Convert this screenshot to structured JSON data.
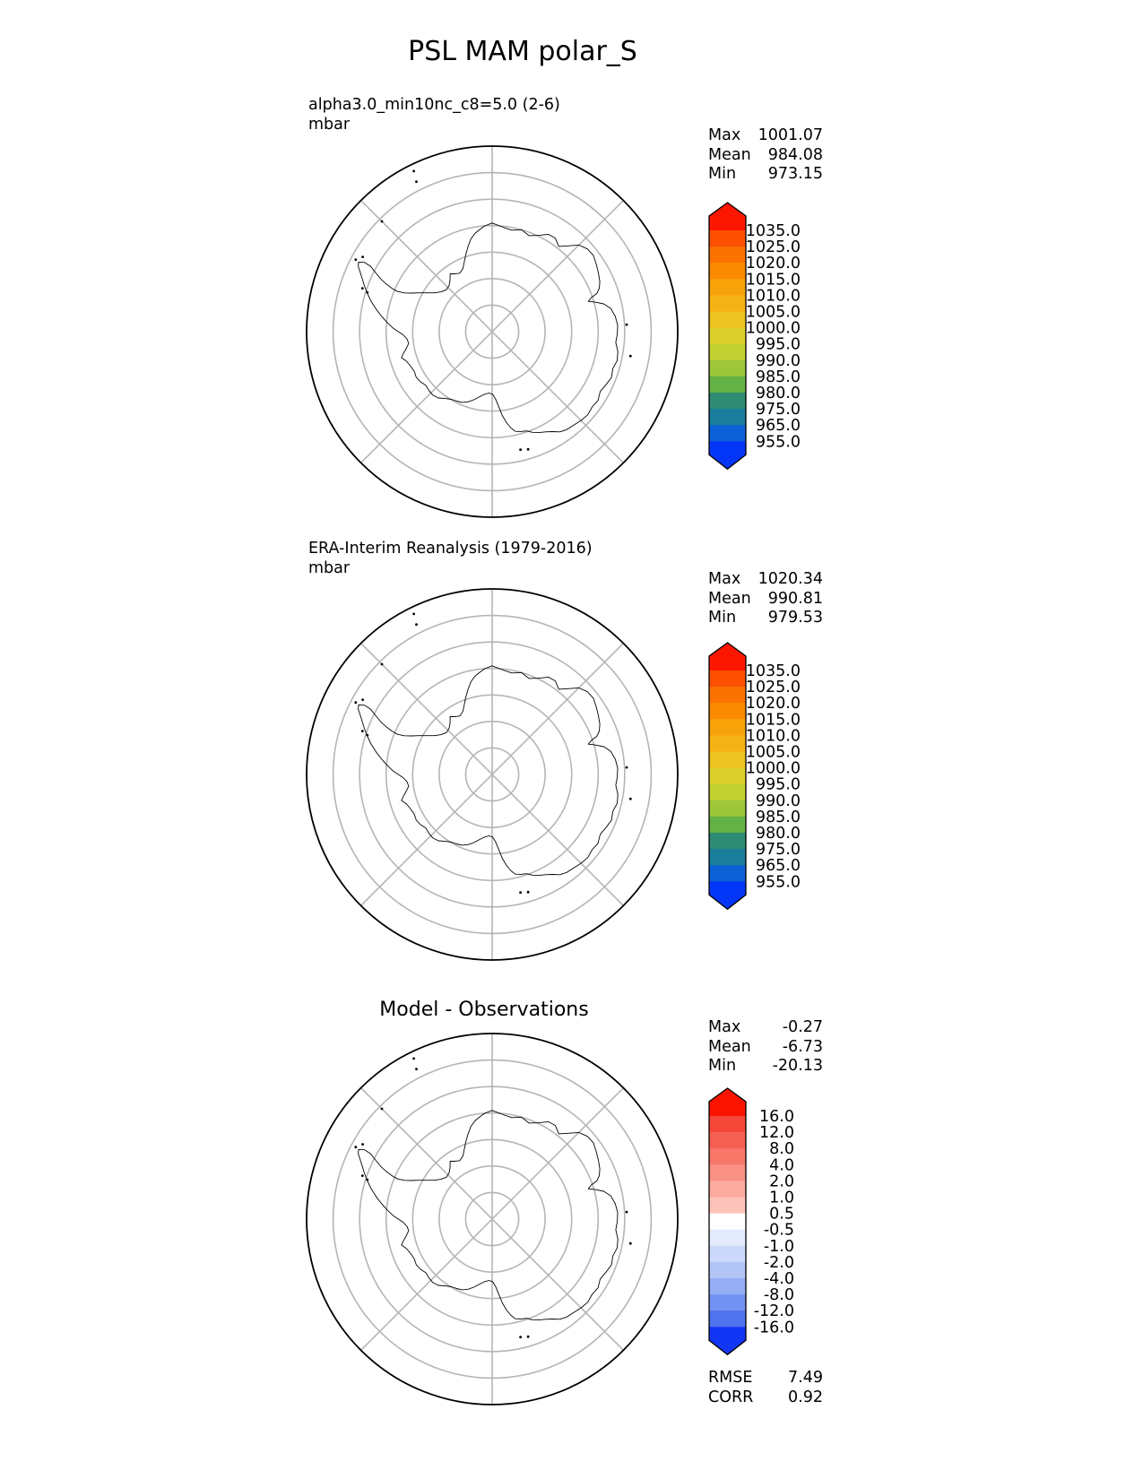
{
  "title": "PSL MAM polar_S",
  "map_geometry": {
    "projection": "south_polar_stereographic",
    "boundary_lat": -55,
    "grid_lat_circles": [
      -85,
      -80,
      -75,
      -70,
      -65,
      -60
    ],
    "grid_meridian_lines_deg": [
      0,
      45,
      135
    ],
    "grid_color": "#b5b5b5",
    "boundary_color": "#000000",
    "coast_color": "#000000",
    "coastline_lonlat": [
      [
        0,
        -69.5
      ],
      [
        6,
        -70.2
      ],
      [
        11,
        -70.5
      ],
      [
        16,
        -70.0
      ],
      [
        21,
        -70.6
      ],
      [
        26,
        -69.8
      ],
      [
        30,
        -68.8
      ],
      [
        34,
        -68.7
      ],
      [
        38,
        -69.6
      ],
      [
        42,
        -68.2
      ],
      [
        45,
        -66.9
      ],
      [
        49,
        -66.2
      ],
      [
        53,
        -66.1
      ],
      [
        57,
        -66.6
      ],
      [
        61,
        -67.1
      ],
      [
        65,
        -67.6
      ],
      [
        68,
        -68.2
      ],
      [
        70,
        -69.0
      ],
      [
        71,
        -70.2
      ],
      [
        72.5,
        -71.0
      ],
      [
        74,
        -69.8
      ],
      [
        76,
        -68.3
      ],
      [
        79,
        -67.2
      ],
      [
        83,
        -66.6
      ],
      [
        87,
        -66.3
      ],
      [
        91,
        -66.4
      ],
      [
        95,
        -66.6
      ],
      [
        99,
        -66.0
      ],
      [
        103,
        -65.8
      ],
      [
        107,
        -66.2
      ],
      [
        111,
        -65.9
      ],
      [
        115,
        -66.3
      ],
      [
        119,
        -66.7
      ],
      [
        123,
        -66.2
      ],
      [
        127,
        -66.4
      ],
      [
        131,
        -66.1
      ],
      [
        135,
        -66.3
      ],
      [
        139,
        -66.6
      ],
      [
        143,
        -66.8
      ],
      [
        146,
        -67.2
      ],
      [
        149,
        -68.0
      ],
      [
        152,
        -68.6
      ],
      [
        155,
        -69.0
      ],
      [
        158,
        -69.5
      ],
      [
        161,
        -70.2
      ],
      [
        164,
        -70.4
      ],
      [
        167,
        -70.7
      ],
      [
        169,
        -71.5
      ],
      [
        171,
        -72.6
      ],
      [
        173,
        -74.0
      ],
      [
        175,
        -75.8
      ],
      [
        177,
        -77.2
      ],
      [
        179.5,
        -78.2
      ],
      [
        183,
        -78.4
      ],
      [
        187,
        -78.1
      ],
      [
        191,
        -77.5
      ],
      [
        195,
        -76.7
      ],
      [
        199,
        -76.0
      ],
      [
        203,
        -75.5
      ],
      [
        207,
        -75.3
      ],
      [
        211,
        -75.1
      ],
      [
        215,
        -74.6
      ],
      [
        219,
        -73.9
      ],
      [
        223,
        -73.6
      ],
      [
        227,
        -73.7
      ],
      [
        231,
        -73.9
      ],
      [
        235,
        -73.5
      ],
      [
        239,
        -73.3
      ],
      [
        243,
        -73.5
      ],
      [
        247,
        -73.3
      ],
      [
        251,
        -72.9
      ],
      [
        254,
        -72.2
      ],
      [
        256,
        -72.7
      ],
      [
        259,
        -73.5
      ],
      [
        262,
        -74.1
      ],
      [
        265,
        -73.9
      ],
      [
        268,
        -73.2
      ],
      [
        270,
        -72.3
      ],
      [
        272,
        -71.3
      ],
      [
        275,
        -70.1
      ],
      [
        278,
        -68.9
      ],
      [
        281,
        -67.7
      ],
      [
        284,
        -66.5
      ],
      [
        287,
        -65.4
      ],
      [
        290,
        -64.3
      ],
      [
        292.5,
        -63.4
      ],
      [
        294.5,
        -62.6
      ],
      [
        296,
        -61.9
      ],
      [
        297.5,
        -61.6
      ],
      [
        298.5,
        -62.6
      ],
      [
        298.2,
        -64.0
      ],
      [
        296.8,
        -65.4
      ],
      [
        295.3,
        -66.8
      ],
      [
        294.2,
        -68.1
      ],
      [
        293.4,
        -69.4
      ],
      [
        293,
        -70.6
      ],
      [
        293.8,
        -71.9
      ],
      [
        295.5,
        -73.1
      ],
      [
        298,
        -74.4
      ],
      [
        300.8,
        -75.7
      ],
      [
        304,
        -76.9
      ],
      [
        308,
        -77.8
      ],
      [
        312.5,
        -78.3
      ],
      [
        317,
        -78.1
      ],
      [
        321,
        -77.4
      ],
      [
        324,
        -76.5
      ],
      [
        327,
        -77.0
      ],
      [
        331,
        -77.4
      ],
      [
        335,
        -76.9
      ],
      [
        338,
        -75.9
      ],
      [
        341,
        -74.7
      ],
      [
        344,
        -73.4
      ],
      [
        347,
        -72.1
      ],
      [
        350,
        -71.2
      ],
      [
        353,
        -70.6
      ],
      [
        356,
        -70.0
      ],
      [
        360,
        -69.5
      ]
    ],
    "islands_lonlat": [
      [
        334,
        -56.3
      ],
      [
        333.2,
        -58.3
      ],
      [
        315,
        -60.6
      ],
      [
        297.8,
        -60.9
      ],
      [
        300,
        -61.8
      ],
      [
        288.5,
        -64.2
      ],
      [
        287.5,
        -65.3
      ],
      [
        163,
        -66.8
      ],
      [
        166.5,
        -67.1
      ],
      [
        87,
        -64.6
      ],
      [
        100,
        -63.5
      ]
    ]
  },
  "chart_data": [
    {
      "type": "heatmap",
      "projection": "south_polar_stereographic",
      "title": "alpha3.0_min10nc_c8=5.0 (2-6)",
      "units": "mbar",
      "stats": [
        {
          "label": "Max",
          "value": "1001.07"
        },
        {
          "label": "Mean",
          "value": "984.08"
        },
        {
          "label": "Min",
          "value": "973.15"
        }
      ],
      "colorbar": {
        "orientation": "vertical",
        "extend": "both",
        "levels": [
          "1035.0",
          "1025.0",
          "1020.0",
          "1015.0",
          "1010.0",
          "1005.0",
          "1000.0",
          "995.0",
          "990.0",
          "985.0",
          "980.0",
          "975.0",
          "965.0",
          "955.0"
        ],
        "band_colors": [
          "#fc5000",
          "#fc7200",
          "#fb8b00",
          "#f9a30b",
          "#f5b215",
          "#edc321",
          "#ddcf2b",
          "#c3d032",
          "#9dc63a",
          "#63b246",
          "#2e8b74",
          "#1a7d9b",
          "#0a60d4"
        ],
        "above_color": "#fb1600",
        "below_color": "#0336f7"
      }
    },
    {
      "type": "heatmap",
      "projection": "south_polar_stereographic",
      "title": "ERA-Interim Reanalysis (1979-2016)",
      "units": "mbar",
      "stats": [
        {
          "label": "Max",
          "value": "1020.34"
        },
        {
          "label": "Mean",
          "value": "990.81"
        },
        {
          "label": "Min",
          "value": "979.53"
        }
      ],
      "colorbar": {
        "orientation": "vertical",
        "extend": "both",
        "levels": [
          "1035.0",
          "1025.0",
          "1020.0",
          "1015.0",
          "1010.0",
          "1005.0",
          "1000.0",
          "995.0",
          "990.0",
          "985.0",
          "980.0",
          "975.0",
          "965.0",
          "955.0"
        ],
        "band_colors": [
          "#fc5000",
          "#fc7200",
          "#fb8b00",
          "#f9a30b",
          "#f5b215",
          "#edc321",
          "#ddcf2b",
          "#c3d032",
          "#9dc63a",
          "#63b246",
          "#2e8b74",
          "#1a7d9b",
          "#0a60d4"
        ],
        "above_color": "#fb1600",
        "below_color": "#0336f7"
      }
    },
    {
      "type": "heatmap",
      "projection": "south_polar_stereographic",
      "title": "Model - Observations",
      "units": "",
      "stats": [
        {
          "label": "Max",
          "value": "-0.27"
        },
        {
          "label": "Mean",
          "value": "-6.73"
        },
        {
          "label": "Min",
          "value": "-20.13"
        }
      ],
      "metrics": [
        {
          "label": "RMSE",
          "value": "7.49"
        },
        {
          "label": "CORR",
          "value": "0.92"
        }
      ],
      "colorbar": {
        "orientation": "vertical",
        "extend": "both",
        "levels": [
          "16.0",
          "12.0",
          "8.0",
          "4.0",
          "2.0",
          "1.0",
          "0.5",
          "-0.5",
          "-1.0",
          "-2.0",
          "-4.0",
          "-8.0",
          "-12.0",
          "-16.0"
        ],
        "band_colors": [
          "#f54839",
          "#f66052",
          "#f8786a",
          "#f99184",
          "#fbaa9e",
          "#fdc3ba",
          "#ffffff",
          "#e3ebfc",
          "#ccd9fa",
          "#b2c5f7",
          "#94adf4",
          "#7391f0",
          "#4f73ec"
        ],
        "above_color": "#fa1400",
        "below_color": "#1236f4"
      }
    }
  ]
}
